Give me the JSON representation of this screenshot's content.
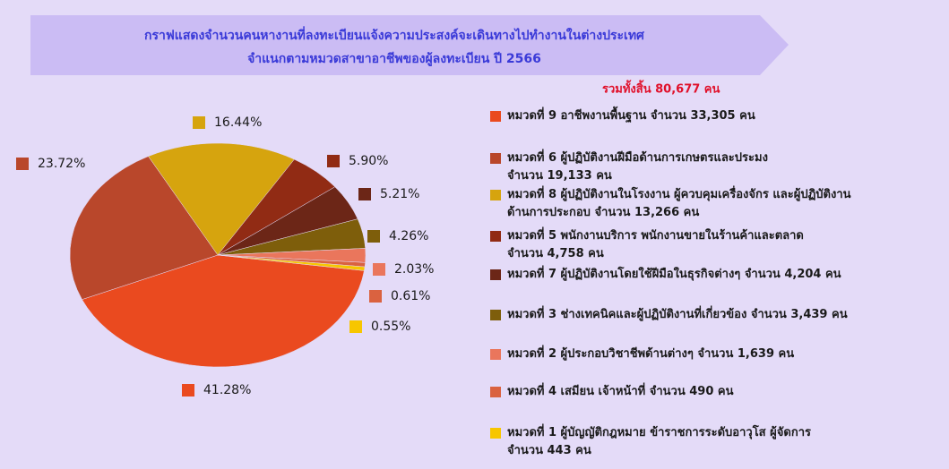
{
  "chart_data": {
    "type": "pie",
    "title": "กราฟแสดงจำนวนคนหางานที่ลงทะเบียนแจ้งความประสงค์จะเดินทางไปทำงานในต่างประเทศ",
    "subtitle": "จำแนกตามหมวดสาขาอาชีพของผู้ลงทะเบียน   ปี 2566",
    "annotation": "รวมทั้งสิ้น 80,677 คน",
    "categories": [
      "หมวดที่ 9 อาชีพงานพื้นฐาน  จำนวน 33,305 คน",
      "หมวดที่ 6 ผู้ปฏิบัติงานฝีมือด้านการเกษตรและประมง\nจำนวน 19,133 คน",
      "หมวดที่ 8 ผู้ปฏิบัติงานในโรงงาน ผู้ควบคุมเครื่องจักร และผู้ปฏิบัติงาน\nด้านการประกอบ  จำนวน 13,266 คน",
      "หมวดที่ 5 พนักงานบริการ พนักงานขายในร้านค้าและตลาด\nจำนวน 4,758 คน",
      "หมวดที่ 7 ผู้ปฏิบัติงานโดยใช้ฝีมือในธุรกิจต่างๆ  จำนวน 4,204 คน",
      "หมวดที่ 3 ช่างเทคนิคและผู้ปฏิบัติงานที่เกี่ยวข้อง  จำนวน 3,439 คน",
      "หมวดที่ 2 ผู้ประกอบวิชาชีพด้านต่างๆ  จำนวน 1,639 คน",
      "หมวดที่ 4 เสมียน เจ้าหน้าที่  จำนวน 490 คน",
      "หมวดที่ 1 ผู้บัญญัติกฎหมาย ข้าราชการระดับอาวุโส ผู้จัดการ\nจำนวน 443 คน"
    ],
    "values": [
      41.28,
      23.72,
      16.44,
      5.9,
      5.21,
      4.26,
      2.03,
      0.61,
      0.55
    ],
    "value_labels": [
      "41.28%",
      "23.72%",
      "16.44%",
      "5.90%",
      "5.21%",
      "4.26%",
      "2.03%",
      "0.61%",
      "0.55%"
    ],
    "colors": [
      "#ea4a1f",
      "#b9472b",
      "#d6a40e",
      "#912b14",
      "#6c2617",
      "#7e5e0b",
      "#ea765c",
      "#da6240",
      "#f7c600"
    ]
  }
}
